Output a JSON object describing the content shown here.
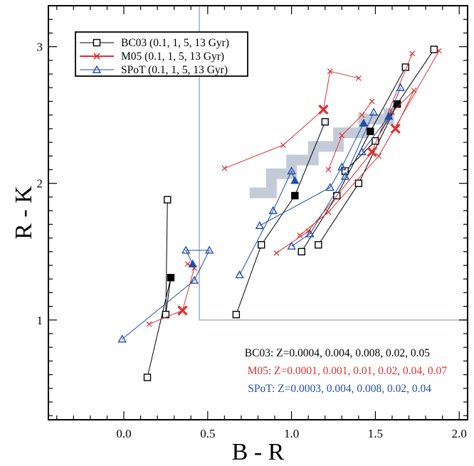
{
  "chart_data": {
    "type": "line",
    "xlabel": "B - R",
    "ylabel": "R - K",
    "xlim": [
      -0.45,
      2.05
    ],
    "ylim": [
      0.27,
      3.3
    ],
    "xticks": [
      0.0,
      0.5,
      1.0,
      1.5,
      2.0
    ],
    "xtick_labels": [
      "0.0",
      "0.5",
      "1.0",
      "1.5",
      "2.0"
    ],
    "yticks": [
      1,
      2,
      3
    ],
    "ytick_labels": [
      "1",
      "2",
      "3"
    ],
    "colors": {
      "bc03": "#000000",
      "m05": "#e03030",
      "spot": "#1f4fa8",
      "band": "#c4cbd8",
      "selection": "#b8c0cc"
    },
    "legend": {
      "placement": "top-left",
      "entries": [
        {
          "key": "bc03",
          "label": "BC03 (0.1, 1, 5, 13 Gyr)",
          "marker": "square"
        },
        {
          "key": "m05",
          "label": "M05 (0.1, 1, 5, 13 Gyr)",
          "marker": "cross"
        },
        {
          "key": "spot",
          "label": "SPoT (0.1, 1, 5, 13 Gyr)",
          "marker": "triangle"
        }
      ]
    },
    "annotations": [
      {
        "key": "bc03",
        "text": "BC03: Z=0.0004, 0.004, 0.008, 0.02, 0.05"
      },
      {
        "key": "m05",
        "text": "M05: Z=0.0001, 0.001, 0.01, 0.02, 0.04, 0.07"
      },
      {
        "key": "spot",
        "text": "SPoT: Z=0.0003, 0.004, 0.008, 0.02, 0.04"
      }
    ],
    "selection_region": {
      "x_min": 0.45,
      "y_min": 1.0
    },
    "band": {
      "x": [
        0.75,
        0.88,
        1.0,
        1.13,
        1.28,
        1.43,
        1.58
      ],
      "y": [
        1.93,
        2.07,
        2.17,
        2.27,
        2.37,
        2.47,
        2.55
      ]
    },
    "series": [
      {
        "family": "bc03",
        "name": "Z=0.0004",
        "x": [
          0.26,
          0.25,
          0.28,
          0.14
        ],
        "y": [
          1.88,
          1.04,
          1.31,
          0.58
        ],
        "filled": [
          false,
          false,
          true,
          false
        ]
      },
      {
        "family": "bc03",
        "name": "Z=0.004",
        "x": [
          0.67,
          0.82,
          1.02,
          1.2
        ],
        "y": [
          1.04,
          1.55,
          1.91,
          2.45
        ],
        "filled": [
          false,
          false,
          true,
          false
        ]
      },
      {
        "family": "bc03",
        "name": "Z=0.008",
        "x": [
          1.06,
          1.27,
          1.47,
          1.68
        ],
        "y": [
          1.5,
          1.91,
          2.38,
          2.85
        ],
        "filled": [
          false,
          false,
          true,
          false
        ]
      },
      {
        "family": "bc03",
        "name": "Z=0.02",
        "x": [
          1.16,
          1.4,
          1.63,
          1.85
        ],
        "y": [
          1.55,
          2.0,
          2.58,
          2.98
        ],
        "filled": [
          false,
          false,
          true,
          false
        ]
      },
      {
        "family": "bc03",
        "name": "Z=0.05",
        "x": [
          1.32,
          1.5,
          1.63
        ],
        "y": [
          2.09,
          2.31,
          2.58
        ],
        "filled": [
          false,
          false,
          true
        ]
      },
      {
        "family": "m05",
        "name": "Z=0.0001",
        "x": [
          0.15,
          0.35,
          0.42,
          0.38
        ],
        "y": [
          0.97,
          1.07,
          1.38,
          1.41
        ],
        "big": [
          false,
          true,
          false,
          false
        ]
      },
      {
        "family": "m05",
        "name": "Z=0.001",
        "x": [
          0.6,
          0.95,
          1.19,
          1.23,
          1.4
        ],
        "y": [
          2.11,
          2.28,
          2.54,
          2.82,
          2.77
        ],
        "big": [
          false,
          false,
          true,
          false,
          false
        ]
      },
      {
        "family": "m05",
        "name": "Z=0.01",
        "x": [
          1.22,
          1.3,
          1.42,
          1.48
        ],
        "y": [
          2.1,
          2.35,
          2.5,
          2.6
        ],
        "big": [
          false,
          false,
          false,
          false
        ]
      },
      {
        "family": "m05",
        "name": "Z=0.02",
        "x": [
          0.91,
          1.1,
          1.48,
          1.72
        ],
        "y": [
          1.49,
          1.65,
          2.23,
          2.95
        ],
        "big": [
          false,
          false,
          true,
          false
        ]
      },
      {
        "family": "m05",
        "name": "Z=0.04",
        "x": [
          1.05,
          1.22,
          1.52,
          1.88
        ],
        "y": [
          1.62,
          1.79,
          2.2,
          2.97
        ],
        "big": [
          false,
          false,
          false,
          false
        ]
      },
      {
        "family": "m05",
        "name": "Z=0.07",
        "x": [
          1.62,
          1.73,
          1.6
        ],
        "y": [
          2.4,
          2.68,
          2.52
        ],
        "big": [
          true,
          false,
          false
        ]
      },
      {
        "family": "spot",
        "name": "Z=0.0003",
        "x": [
          -0.01,
          0.42,
          0.51,
          0.37,
          0.41
        ],
        "y": [
          0.86,
          1.29,
          1.51,
          1.51,
          1.41
        ],
        "filled": [
          false,
          false,
          false,
          false,
          true
        ]
      },
      {
        "family": "spot",
        "name": "Z=0.004",
        "x": [
          0.69,
          0.89,
          1.0,
          1.02
        ],
        "y": [
          1.33,
          1.8,
          2.09,
          2.02
        ],
        "filled": [
          false,
          false,
          false,
          true
        ]
      },
      {
        "family": "spot",
        "name": "Z=0.008",
        "x": [
          0.81,
          1.23,
          1.3,
          1.43
        ],
        "y": [
          1.69,
          1.97,
          2.12,
          2.44
        ],
        "filled": [
          false,
          false,
          false,
          true
        ]
      },
      {
        "family": "spot",
        "name": "Z=0.02",
        "x": [
          1.0,
          1.11,
          1.32,
          1.49
        ],
        "y": [
          1.54,
          1.63,
          2.05,
          2.52
        ],
        "filled": [
          false,
          false,
          false,
          false
        ]
      },
      {
        "family": "spot",
        "name": "Z=0.04",
        "x": [
          1.42,
          1.58,
          1.65
        ],
        "y": [
          2.23,
          2.49,
          2.7
        ],
        "filled": [
          false,
          true,
          false
        ]
      }
    ]
  }
}
